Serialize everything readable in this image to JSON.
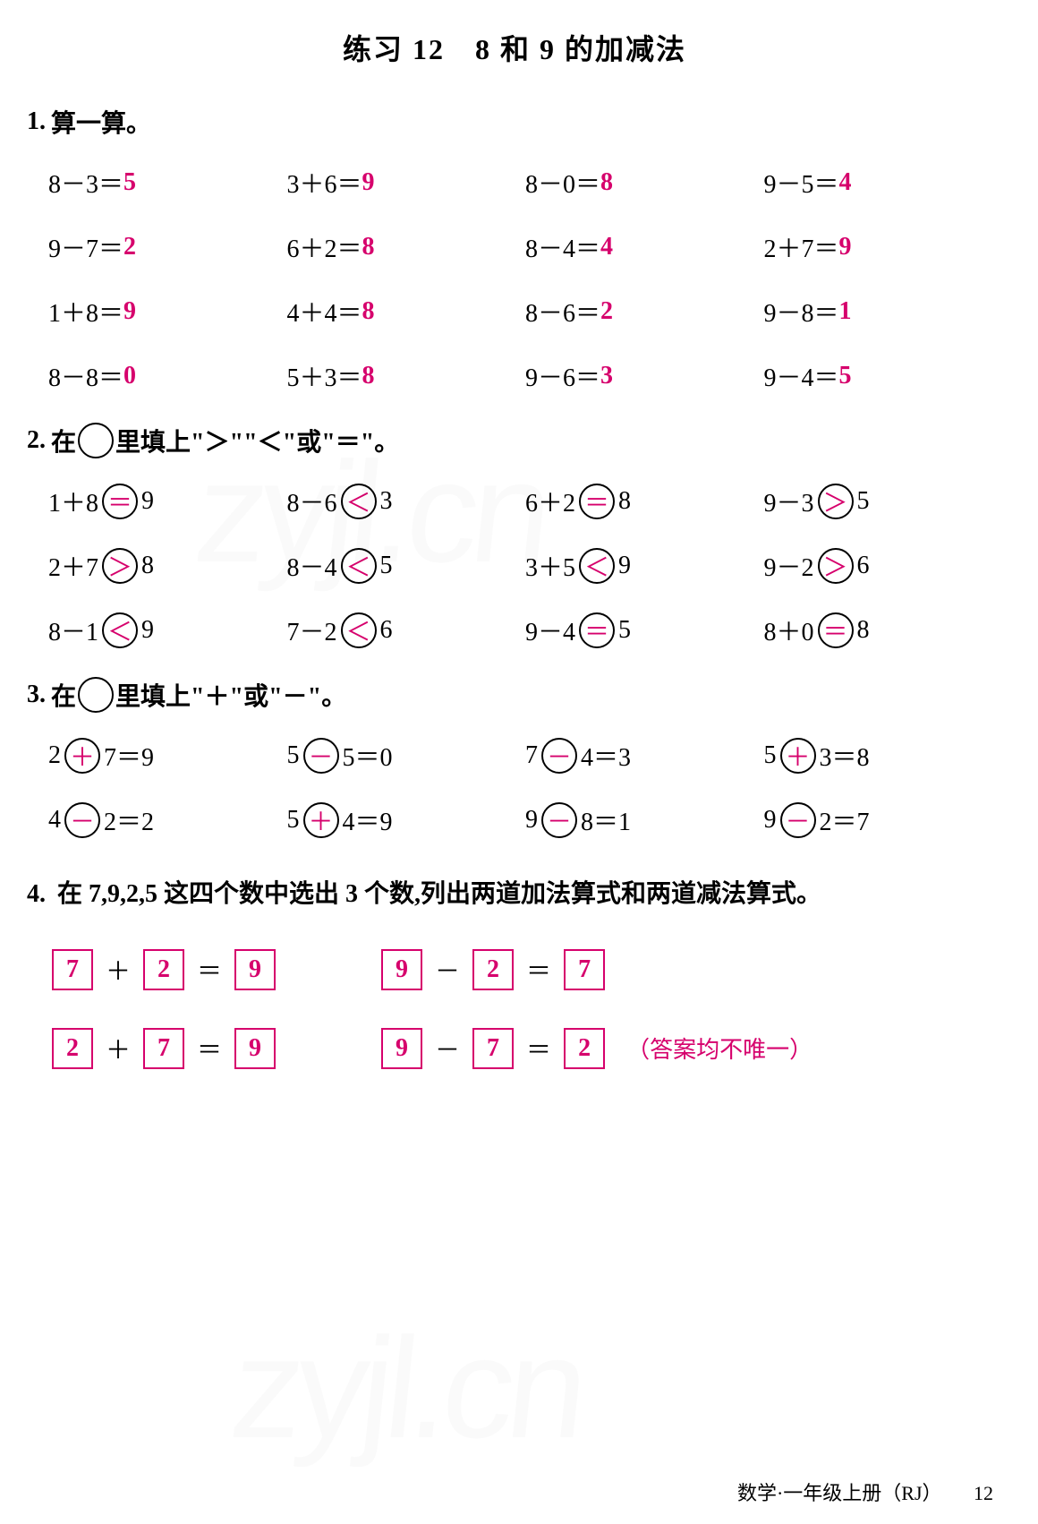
{
  "title": "练习 12　8 和 9 的加减法",
  "colors": {
    "answer": "#d6006c",
    "text": "#000000",
    "background": "#ffffff"
  },
  "q1": {
    "num": "1.",
    "label": "算一算。",
    "rows": [
      [
        {
          "expr": "8－3＝",
          "ans": "5"
        },
        {
          "expr": "3＋6＝",
          "ans": "9"
        },
        {
          "expr": "8－0＝",
          "ans": "8"
        },
        {
          "expr": "9－5＝",
          "ans": "4"
        }
      ],
      [
        {
          "expr": "9－7＝",
          "ans": "2"
        },
        {
          "expr": "6＋2＝",
          "ans": "8"
        },
        {
          "expr": "8－4＝",
          "ans": "4"
        },
        {
          "expr": "2＋7＝",
          "ans": "9"
        }
      ],
      [
        {
          "expr": "1＋8＝",
          "ans": "9"
        },
        {
          "expr": "4＋4＝",
          "ans": "8"
        },
        {
          "expr": "8－6＝",
          "ans": "2"
        },
        {
          "expr": "9－8＝",
          "ans": "1"
        }
      ],
      [
        {
          "expr": "8－8＝",
          "ans": "0"
        },
        {
          "expr": "5＋3＝",
          "ans": "8"
        },
        {
          "expr": "9－6＝",
          "ans": "3"
        },
        {
          "expr": "9－4＝",
          "ans": "5"
        }
      ]
    ]
  },
  "q2": {
    "num": "2.",
    "label_pre": "在",
    "label_post": "里填上\"＞\"\"＜\"或\"＝\"。",
    "rows": [
      [
        {
          "l": "1＋8",
          "s": "＝",
          "r": "9"
        },
        {
          "l": "8－6",
          "s": "＜",
          "r": "3"
        },
        {
          "l": "6＋2",
          "s": "＝",
          "r": "8"
        },
        {
          "l": "9－3",
          "s": "＞",
          "r": "5"
        }
      ],
      [
        {
          "l": "2＋7",
          "s": "＞",
          "r": "8"
        },
        {
          "l": "8－4",
          "s": "＜",
          "r": "5"
        },
        {
          "l": "3＋5",
          "s": "＜",
          "r": "9"
        },
        {
          "l": "9－2",
          "s": "＞",
          "r": "6"
        }
      ],
      [
        {
          "l": "8－1",
          "s": "＜",
          "r": "9"
        },
        {
          "l": "7－2",
          "s": "＜",
          "r": "6"
        },
        {
          "l": "9－4",
          "s": "＝",
          "r": "5"
        },
        {
          "l": "8＋0",
          "s": "＝",
          "r": "8"
        }
      ]
    ]
  },
  "q3": {
    "num": "3.",
    "label_pre": "在",
    "label_post": "里填上\"＋\"或\"－\"。",
    "rows": [
      [
        {
          "a": "2",
          "op": "＋",
          "b": "7＝9"
        },
        {
          "a": "5",
          "op": "－",
          "b": "5＝0"
        },
        {
          "a": "7",
          "op": "－",
          "b": "4＝3"
        },
        {
          "a": "5",
          "op": "＋",
          "b": "3＝8"
        }
      ],
      [
        {
          "a": "4",
          "op": "－",
          "b": "2＝2"
        },
        {
          "a": "5",
          "op": "＋",
          "b": "4＝9"
        },
        {
          "a": "9",
          "op": "－",
          "b": "8＝1"
        },
        {
          "a": "9",
          "op": "－",
          "b": "2＝7"
        }
      ]
    ]
  },
  "q4": {
    "num": "4.",
    "text": "在 7,9,2,5 这四个数中选出 3 个数,列出两道加法算式和两道减法算式。",
    "eq1": {
      "a": "7",
      "op": "＋",
      "b": "2",
      "eq": "＝",
      "c": "9"
    },
    "eq2": {
      "a": "9",
      "op": "－",
      "b": "2",
      "eq": "＝",
      "c": "7"
    },
    "eq3": {
      "a": "2",
      "op": "＋",
      "b": "7",
      "eq": "＝",
      "c": "9"
    },
    "eq4": {
      "a": "9",
      "op": "－",
      "b": "7",
      "eq": "＝",
      "c": "2"
    },
    "note": "（答案均不唯一）"
  },
  "footer": {
    "text": "数学·一年级上册（RJ）",
    "page": "12"
  },
  "watermark": "zyjl.cn"
}
